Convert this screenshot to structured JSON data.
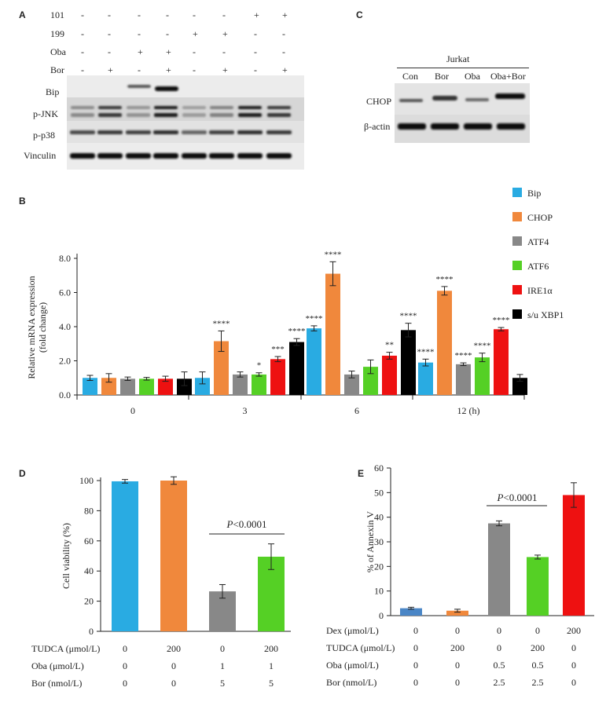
{
  "panelA": {
    "letter": "A",
    "rows": [
      {
        "label": "101",
        "marks": [
          "-",
          "-",
          "-",
          "-",
          "-",
          "-",
          "+",
          "+"
        ]
      },
      {
        "label": "199",
        "marks": [
          "-",
          "-",
          "-",
          "-",
          "+",
          "+",
          "-",
          "-"
        ]
      },
      {
        "label": "Oba",
        "marks": [
          "-",
          "-",
          "+",
          "+",
          "-",
          "-",
          "-",
          "-"
        ]
      },
      {
        "label": "Bor",
        "marks": [
          "-",
          "+",
          "-",
          "+",
          "-",
          "+",
          "-",
          "+"
        ]
      }
    ],
    "blots": [
      "Bip",
      "p-JNK",
      "p-p38",
      "Vinculin"
    ]
  },
  "panelC": {
    "letter": "C",
    "cell_line": "Jurkat",
    "lanes": [
      "Con",
      "Bor",
      "Oba",
      "Oba+Bor"
    ],
    "blots": [
      "CHOP",
      "β-actin"
    ]
  },
  "panelB": {
    "letter": "B",
    "ylabel_line1": "Relative mRNA expression",
    "ylabel_line2": "(fold change)",
    "x_unit": "(h)",
    "chart_data": {
      "type": "bar",
      "categories": [
        "0",
        "3",
        "6",
        "12"
      ],
      "ylim": [
        0,
        8
      ],
      "yticks": [
        "0.0",
        "2.0",
        "4.0",
        "6.0",
        "8.0"
      ],
      "series": [
        {
          "name": "Bip",
          "color": "#29abe2",
          "values": [
            1.0,
            1.0,
            3.9,
            1.9
          ],
          "errors": [
            0.15,
            0.35,
            0.15,
            0.2
          ],
          "stars": [
            "",
            "",
            "****",
            "****"
          ]
        },
        {
          "name": "CHOP",
          "color": "#f0883c",
          "values": [
            1.0,
            3.15,
            7.1,
            6.1
          ],
          "errors": [
            0.25,
            0.6,
            0.7,
            0.25
          ],
          "stars": [
            "",
            "****",
            "****",
            "****"
          ]
        },
        {
          "name": "ATF4",
          "color": "#888888",
          "values": [
            0.95,
            1.2,
            1.2,
            1.8
          ],
          "errors": [
            0.1,
            0.15,
            0.2,
            0.08
          ],
          "stars": [
            "",
            "",
            "",
            "****"
          ]
        },
        {
          "name": "ATF6",
          "color": "#55d025",
          "values": [
            0.95,
            1.2,
            1.65,
            2.2
          ],
          "errors": [
            0.08,
            0.1,
            0.4,
            0.25
          ],
          "stars": [
            "",
            "*",
            "",
            "****"
          ]
        },
        {
          "name": "IRE1α",
          "color": "#ee1111",
          "values": [
            0.95,
            2.1,
            2.3,
            3.85
          ],
          "errors": [
            0.15,
            0.15,
            0.2,
            0.1
          ],
          "stars": [
            "",
            "***",
            "**",
            "****"
          ]
        },
        {
          "name": "s/u XBP1",
          "color": "#000000",
          "values": [
            0.95,
            3.1,
            3.8,
            1.0
          ],
          "errors": [
            0.4,
            0.2,
            0.4,
            0.2
          ],
          "stars": [
            "",
            "****",
            "****",
            ""
          ]
        }
      ]
    }
  },
  "panelD": {
    "letter": "D",
    "ylabel": "Cell viability (%)",
    "pvalue_p": "P",
    "pvalue_rest": "<0.0001",
    "chart_data": {
      "type": "bar",
      "ylim": [
        0,
        100
      ],
      "yticks": [
        "0",
        "20",
        "40",
        "60",
        "80",
        "100"
      ],
      "values": [
        99.5,
        100,
        26.5,
        49.5
      ],
      "errors": [
        1.2,
        2.5,
        4.5,
        8.5
      ],
      "colors": [
        "#29abe2",
        "#f0883c",
        "#888888",
        "#55d025"
      ]
    },
    "conditions": [
      {
        "label": "TUDCA (μmol/L)",
        "values": [
          "0",
          "200",
          "0",
          "200"
        ]
      },
      {
        "label": "Oba (μmol/L)",
        "values": [
          "0",
          "0",
          "1",
          "1"
        ]
      },
      {
        "label": "Bor (nmol/L)",
        "values": [
          "0",
          "0",
          "5",
          "5"
        ]
      }
    ]
  },
  "panelE": {
    "letter": "E",
    "ylabel": "% of Annexin V",
    "pvalue_p": "P",
    "pvalue_rest": "<0.0001",
    "chart_data": {
      "type": "bar",
      "ylim": [
        0,
        60
      ],
      "yticks": [
        "0",
        "10",
        "20",
        "30",
        "40",
        "50",
        "60"
      ],
      "values": [
        3.0,
        2.0,
        37.5,
        23.8,
        49.0
      ],
      "errors": [
        0.4,
        0.6,
        1.0,
        0.8,
        5.0
      ],
      "colors": [
        "#4a86c6",
        "#f0883c",
        "#888888",
        "#55d025",
        "#ee1111"
      ]
    },
    "conditions": [
      {
        "label": "Dex (μmol/L)",
        "values": [
          "0",
          "0",
          "0",
          "0",
          "200"
        ]
      },
      {
        "label": "TUDCA (μmol/L)",
        "values": [
          "0",
          "200",
          "0",
          "200",
          "0"
        ]
      },
      {
        "label": "Oba  (μmol/L)",
        "values": [
          "0",
          "0",
          "0.5",
          "0.5",
          "0"
        ]
      },
      {
        "label": "Bor  (nmol/L)",
        "values": [
          "0",
          "0",
          "2.5",
          "2.5",
          "0"
        ]
      }
    ]
  }
}
